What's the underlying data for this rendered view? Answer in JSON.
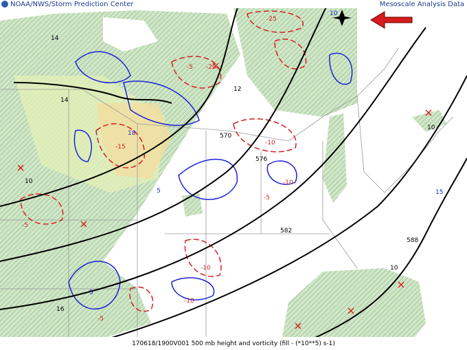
{
  "header": {
    "source": "NOAA/NWS/Storm Prediction Center",
    "product": "Mesoscale Analysis Data"
  },
  "footer": {
    "caption": "170618/1900V001 500 mb height and vorticity (fill -  (*10**5) s-1)"
  },
  "height_labels": [
    "570",
    "576",
    "582",
    "588"
  ],
  "vorticity_labels": [
    "14",
    "14",
    "10",
    "-5",
    "-10",
    "-15",
    "12",
    "18",
    "-20",
    "-25",
    "10",
    "-5",
    "10",
    "16",
    "-10",
    "5",
    "-5",
    "5",
    "-10",
    "10",
    "-10",
    "-5",
    "15"
  ]
}
